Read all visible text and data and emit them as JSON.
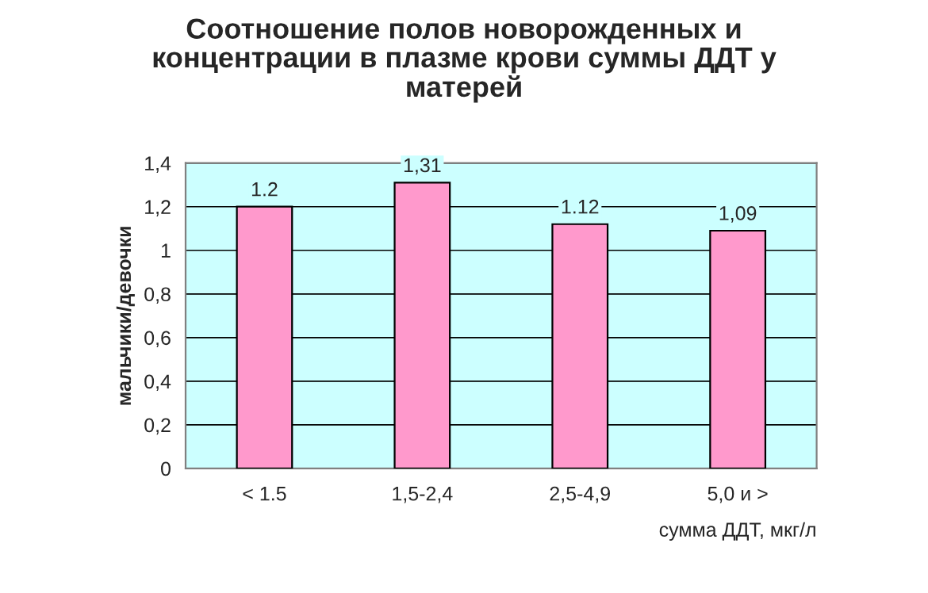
{
  "chart_data": {
    "type": "bar",
    "title": "Соотношение полов новорожденных и\nконцентрации в плазме крови суммы ДДТ у\nматерей",
    "xlabel": "сумма ДДТ, мкг/л",
    "ylabel": "мальчики/девочки",
    "categories": [
      "< 1.5",
      "1,5-2,4",
      "2,5-4,9",
      "5,0 и >"
    ],
    "values": [
      1.2,
      1.31,
      1.12,
      1.09
    ],
    "value_labels": [
      "1.2",
      "1,31",
      "1.12",
      "1,09"
    ],
    "color": "#ff99cc",
    "ylim": [
      0,
      1.4
    ],
    "yticks": [
      0,
      {
        "value": 0.2,
        "label": "0,2"
      },
      {
        "value": 0.4,
        "label": "0,4"
      },
      {
        "value": 0.6,
        "label": "0,6"
      },
      {
        "value": 0.8,
        "label": "0,8"
      },
      1,
      {
        "value": 1.2,
        "label": "1,2"
      },
      {
        "value": 1.4,
        "label": "1,4"
      }
    ],
    "grid": "y"
  }
}
